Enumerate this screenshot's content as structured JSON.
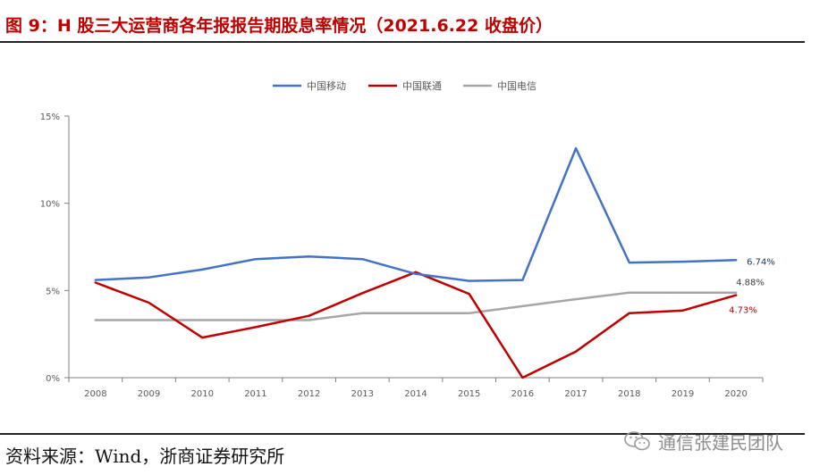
{
  "title": "图 9：H 股三大运营商各年报报告期股息率情况（2021.6.22 收盘价）",
  "source": "资料来源：Wind，浙商证券研究所",
  "watermark": "通信张建民团队",
  "chart_data": {
    "type": "line",
    "title": "",
    "xlabel": "",
    "ylabel": "",
    "categories": [
      "2008",
      "2009",
      "2010",
      "2011",
      "2012",
      "2013",
      "2014",
      "2015",
      "2016",
      "2017",
      "2018",
      "2019",
      "2020"
    ],
    "ylim": [
      0,
      15
    ],
    "yticks": [
      0,
      5,
      10,
      15
    ],
    "ytick_labels": [
      "0%",
      "5%",
      "10%",
      "15%"
    ],
    "legend_position": "top-center",
    "gridlines": false,
    "series": [
      {
        "name": "中国移动",
        "color": "#4472c4",
        "values": [
          5.6,
          5.75,
          6.2,
          6.8,
          6.95,
          6.8,
          5.95,
          5.55,
          5.6,
          13.15,
          6.6,
          6.65,
          6.74
        ],
        "end_label": "6.74%",
        "end_label_color": "#1f3864"
      },
      {
        "name": "中国联通",
        "color": "#c00000",
        "values": [
          5.45,
          4.3,
          2.3,
          2.9,
          3.55,
          4.85,
          6.05,
          4.8,
          0.0,
          1.5,
          3.7,
          3.85,
          4.73
        ],
        "end_label": "4.73%",
        "end_label_color": "#c00000"
      },
      {
        "name": "中国电信",
        "color": "#a6a6a6",
        "values": [
          3.3,
          3.3,
          3.3,
          3.3,
          3.3,
          3.7,
          3.7,
          3.7,
          4.1,
          4.5,
          4.88,
          4.88,
          4.88
        ],
        "end_label": "4.88%",
        "end_label_color": "#404040"
      }
    ]
  }
}
